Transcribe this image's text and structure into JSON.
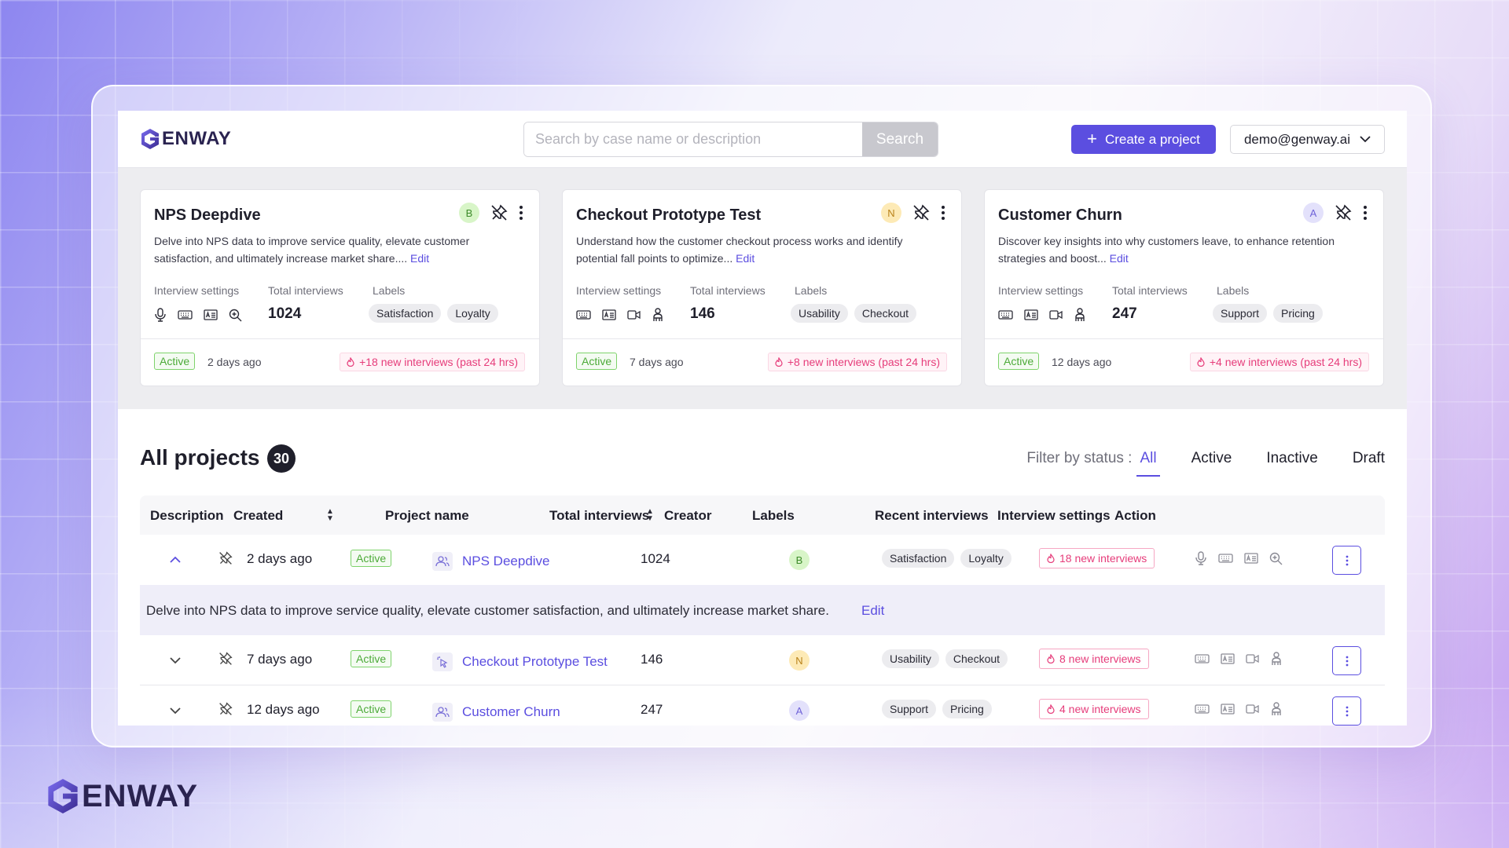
{
  "header": {
    "logo_text": "ENWAY",
    "search_placeholder": "Search by case name or description",
    "search_button": "Search",
    "create_button": "Create a project",
    "account_email": "demo@genway.ai"
  },
  "cards": [
    {
      "title": "NPS Deepdive",
      "avatar": "B",
      "avatar_bg": "#d8f5c8",
      "avatar_color": "#3d8b2a",
      "description": "Delve into NPS data to improve service quality, elevate customer satisfaction, and ultimately increase market share.... ",
      "edit": "Edit",
      "settings_label": "Interview settings",
      "total_label": "Total interviews",
      "labels_label": "Labels",
      "settings_icons": [
        "mic-icon",
        "keyboard-icon",
        "id-card-icon",
        "zoom-icon"
      ],
      "total": "1024",
      "labels": [
        "Satisfaction",
        "Loyalty"
      ],
      "status": "Active",
      "ago": "2 days ago",
      "recent": "+18 new interviews (past 24 hrs)"
    },
    {
      "title": "Checkout Prototype Test",
      "avatar": "N",
      "avatar_bg": "#fdeab6",
      "avatar_color": "#b9821a",
      "description": "Understand how the customer checkout process works and identify potential fall points to optimize... ",
      "edit": "Edit",
      "settings_label": "Interview settings",
      "total_label": "Total interviews",
      "labels_label": "Labels",
      "settings_icons": [
        "keyboard-icon",
        "id-card-icon",
        "video-icon",
        "person-icon"
      ],
      "total": "146",
      "labels": [
        "Usability",
        "Checkout"
      ],
      "status": "Active",
      "ago": "7 days ago",
      "recent": "+8 new interviews (past 24 hrs)"
    },
    {
      "title": "Customer Churn",
      "avatar": "A",
      "avatar_bg": "#e3e1fb",
      "avatar_color": "#6f62d8",
      "description": "Discover key insights into why customers leave, to enhance retention strategies and boost... ",
      "edit": "Edit",
      "settings_label": "Interview settings",
      "total_label": "Total interviews",
      "labels_label": "Labels",
      "settings_icons": [
        "keyboard-icon",
        "id-card-icon",
        "video-icon",
        "person-icon"
      ],
      "total": "247",
      "labels": [
        "Support",
        "Pricing"
      ],
      "status": "Active",
      "ago": "12 days ago",
      "recent": "+4 new interviews (past 24 hrs)"
    }
  ],
  "projects": {
    "title": "All projects",
    "count": "30",
    "filter_label": "Filter by status :",
    "filters": [
      "All",
      "Active",
      "Inactive",
      "Draft"
    ],
    "columns": {
      "description": "Description",
      "created": "Created",
      "project_name": "Project name",
      "total_interviews": "Total interviews",
      "creator": "Creator",
      "labels": "Labels",
      "recent_interviews": "Recent interviews",
      "interview_settings": "Interview settings",
      "action": "Action"
    },
    "rows": [
      {
        "ago": "2 days ago",
        "status": "Active",
        "name": "NPS Deepdive",
        "total": "1024",
        "creator": "B",
        "labels": [
          "Satisfaction",
          "Loyalty"
        ],
        "recent": "18 new interviews",
        "expanded_text": "Delve into NPS data to improve service quality, elevate customer satisfaction, and ultimately increase market share.",
        "expanded_edit": "Edit"
      },
      {
        "ago": "7 days ago",
        "status": "Active",
        "name": "Checkout Prototype Test",
        "total": "146",
        "creator": "N",
        "labels": [
          "Usability",
          "Checkout"
        ],
        "recent": "8 new interviews"
      },
      {
        "ago": "12 days ago",
        "status": "Active",
        "name": "Customer Churn",
        "total": "247",
        "creator": "A",
        "labels": [
          "Support",
          "Pricing"
        ],
        "recent": "4 new interviews"
      }
    ]
  },
  "brand": {
    "accent": "#5b4ee0",
    "footer_logo_text": "ENWAY"
  }
}
